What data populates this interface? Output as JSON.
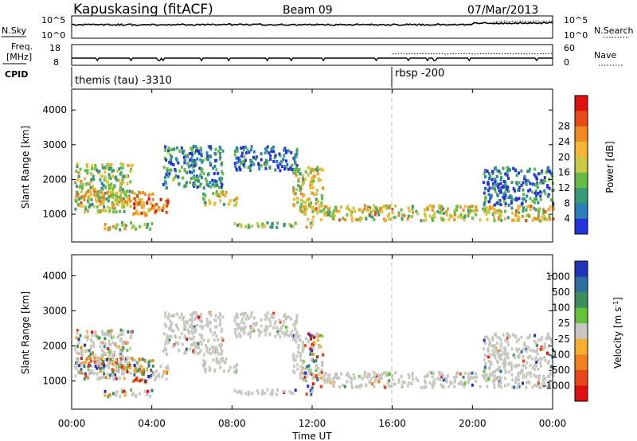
{
  "header": {
    "station": "Kapuskasing (fitACF)",
    "beam": "Beam 09",
    "date": "07/Mar/2013"
  },
  "side_labels": {
    "nsky": "N.Sky",
    "nsearch": "N.Search",
    "freq": "Freq.",
    "freq_unit": "[MHz]",
    "nave": "Nave",
    "cpid": "CPID"
  },
  "noise_panel": {
    "tick_high": "10^5",
    "tick_low": "10^0"
  },
  "freq_panel": {
    "left_ticks": [
      "18",
      "8"
    ],
    "right_ticks": [
      "60",
      "0"
    ]
  },
  "cpid_panel": {
    "segments": [
      {
        "label": "themis (tau) -3310",
        "start_hour": 0
      },
      {
        "label": "rbsp -200",
        "start_hour": 16
      }
    ]
  },
  "chart_data": [
    {
      "type": "heatmap",
      "title": "",
      "xlabel": "Time UT",
      "ylabel": "Slant Range [km]",
      "x_range_hours": [
        0,
        24
      ],
      "x_ticks": [
        "00:00",
        "04:00",
        "08:00",
        "12:00",
        "16:00",
        "20:00",
        "00:00"
      ],
      "y_range_km": [
        200,
        4600
      ],
      "y_ticks": [
        1000,
        2000,
        3000,
        4000
      ],
      "colorbar": {
        "label": "Power [dB]",
        "ticks": [
          "4",
          "8",
          "12",
          "16",
          "20",
          "24",
          "28"
        ],
        "colors": [
          "#2233dd",
          "#2a7fb8",
          "#3a9a76",
          "#66bb44",
          "#c8c844",
          "#f5b535",
          "#f08a20",
          "#e84a18",
          "#e01010"
        ]
      },
      "scatter_regions": [
        {
          "t0": 0.1,
          "t1": 3.0,
          "r0": 1100,
          "r1": 2500,
          "level": 0.45
        },
        {
          "t0": 0.1,
          "t1": 4.0,
          "r0": 1300,
          "r1": 1700,
          "level": 0.6
        },
        {
          "t0": 1.5,
          "t1": 4.0,
          "r0": 600,
          "r1": 800,
          "level": 0.5
        },
        {
          "t0": 3.0,
          "t1": 4.8,
          "r0": 1000,
          "r1": 1500,
          "level": 0.75
        },
        {
          "t0": 4.5,
          "t1": 7.5,
          "r0": 1800,
          "r1": 3000,
          "level": 0.2
        },
        {
          "t0": 6.5,
          "t1": 8.2,
          "r0": 1300,
          "r1": 1700,
          "level": 0.5
        },
        {
          "t0": 8.0,
          "t1": 11.2,
          "r0": 2300,
          "r1": 3000,
          "level": 0.15
        },
        {
          "t0": 11.0,
          "t1": 12.5,
          "r0": 1100,
          "r1": 2400,
          "level": 0.55
        },
        {
          "t0": 11.5,
          "t1": 24.0,
          "r0": 850,
          "r1": 1300,
          "level": 0.55
        },
        {
          "t0": 20.5,
          "t1": 24.0,
          "r0": 1300,
          "r1": 2400,
          "level": 0.15
        },
        {
          "t0": 8.0,
          "t1": 12.0,
          "r0": 650,
          "r1": 800,
          "level": 0.45
        }
      ]
    },
    {
      "type": "heatmap",
      "title": "",
      "xlabel": "Time UT",
      "ylabel": "Slant Range [km]",
      "x_range_hours": [
        0,
        24
      ],
      "x_ticks": [
        "00:00",
        "04:00",
        "08:00",
        "12:00",
        "16:00",
        "20:00",
        "00:00"
      ],
      "y_range_km": [
        200,
        4600
      ],
      "y_ticks": [
        1000,
        2000,
        3000,
        4000
      ],
      "colorbar": {
        "label": "Velocity [m s^-1]",
        "ticks": [
          "1000",
          "500",
          "100",
          "25",
          "-25",
          "-100",
          "-500",
          "-1000"
        ],
        "colors": [
          "#2233bb",
          "#2c6e9e",
          "#3a8f5a",
          "#63c23a",
          "#c8c8c0",
          "#f5b030",
          "#f08020",
          "#e84818",
          "#e01010"
        ]
      },
      "ground_scatter_color": "#c8c8c0"
    }
  ]
}
